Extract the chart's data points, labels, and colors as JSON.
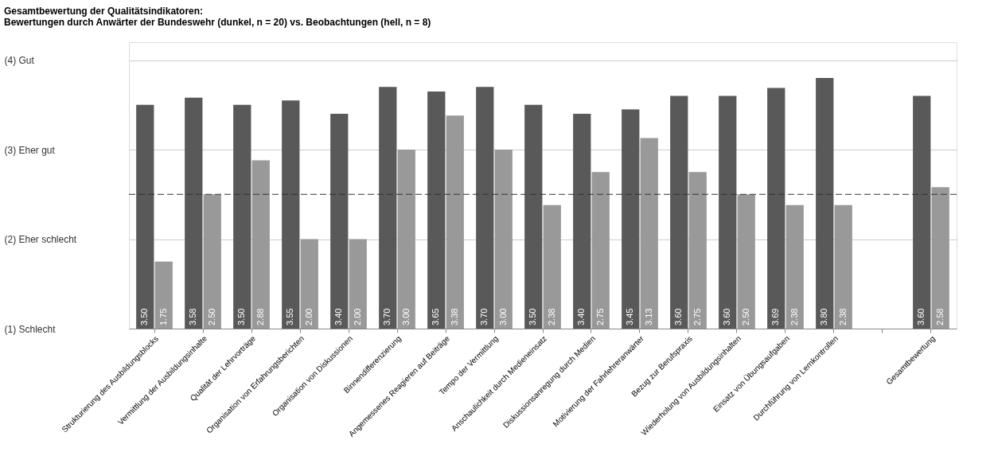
{
  "chart_data": {
    "type": "bar",
    "title": [
      "Gesamtbewertung der Qualitätsindikatoren:",
      "Bewertungen durch Anwärter der Bundeswehr (dunkel, n = 20) vs. Beobachtungen (hell, n = 8)"
    ],
    "categories": [
      "Strukturierung des Ausbildungsblocks",
      "Vermittlung der Ausbildungsinhalte",
      "Qualität der Lehrvorträge",
      "Organisation von Erfahrungsberichten",
      "Organisation von Diskussionen",
      "Binnendifferenzierung",
      "Angemessenes Reagieren auf Beiträge",
      "Tempo der Vermittlung",
      "Anschaulichkeit durch Medieneinsatz",
      "Diskussionsanregung durch Medien",
      "Motivierung der Fahrlehreranwärter",
      "Bezug zur Berufspraxis",
      "Wiederholung von Ausbildungsinhalten",
      "Einsatz von Übungsaufgaben",
      "Durchführung von Lernkontrollen",
      null,
      "Gesamtbewertung"
    ],
    "series": [
      {
        "color": "#595959",
        "values": [
          3.5,
          3.58,
          3.5,
          3.55,
          3.4,
          3.7,
          3.65,
          3.7,
          3.5,
          3.4,
          3.45,
          3.6,
          3.6,
          3.69,
          3.8,
          null,
          3.6
        ],
        "value_labels": [
          "3.50",
          "3.58",
          "3.50",
          "3.55",
          "3.40",
          "3.70",
          "3.65",
          "3.70",
          "3.50",
          "3.40",
          "3.45",
          "3.60",
          "3.60",
          "3.69",
          "3.80",
          null,
          "3.60"
        ]
      },
      {
        "color": "#999999",
        "values": [
          1.75,
          2.5,
          2.88,
          2.0,
          2.0,
          3.0,
          3.38,
          3.0,
          2.38,
          2.75,
          3.13,
          2.75,
          2.5,
          2.38,
          2.38,
          null,
          2.58
        ],
        "value_labels": [
          "1.75",
          "2.50",
          "2.88",
          "2.00",
          "2.00",
          "3.00",
          "3.38",
          "3.00",
          "2.38",
          "2.75",
          "3.13",
          "2.75",
          "2.50",
          "2.38",
          "2.38",
          null,
          "2.58"
        ]
      }
    ],
    "ylim": [
      1,
      4.2
    ],
    "yticks": [
      {
        "value": 1,
        "label": "(1) Schlecht"
      },
      {
        "value": 2,
        "label": "(2) Eher schlecht"
      },
      {
        "value": 3,
        "label": "(3) Eher gut"
      },
      {
        "value": 4,
        "label": "(4) Gut"
      }
    ],
    "ref_lines": [
      {
        "axis": "y",
        "value": 2.5,
        "line_style": "dashed",
        "color": "#333333"
      }
    ],
    "grid": "y"
  }
}
